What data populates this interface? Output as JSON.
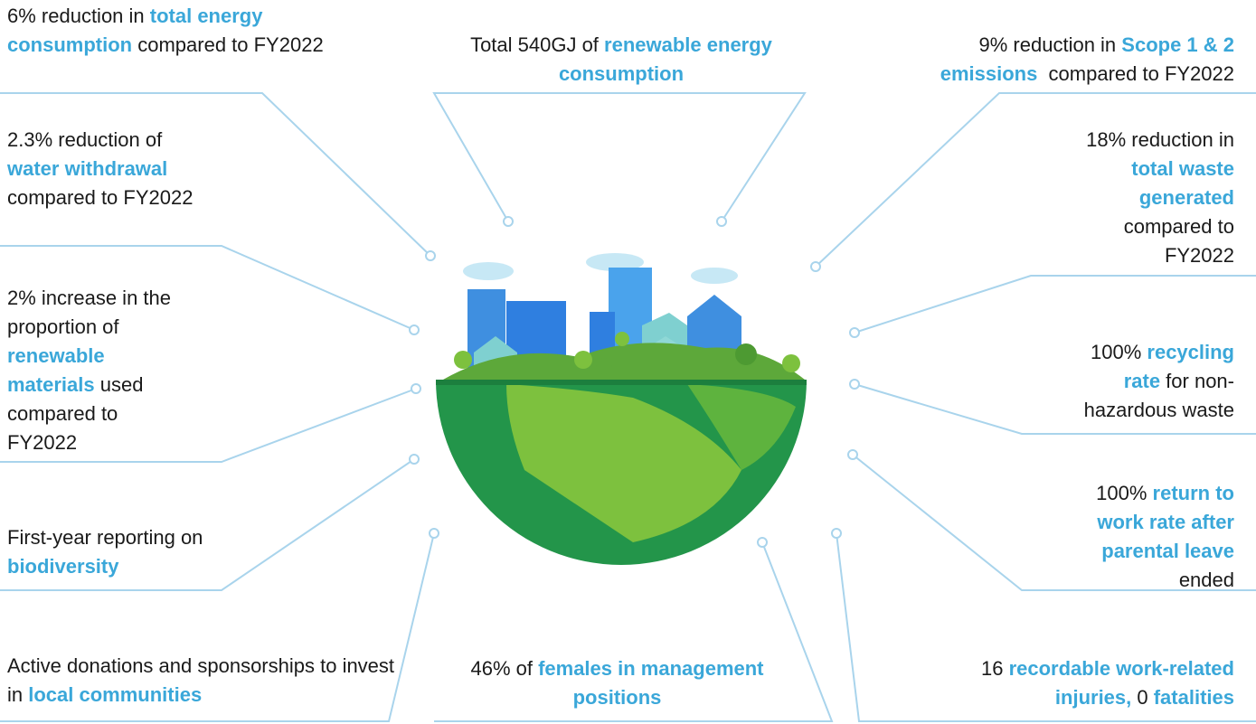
{
  "callouts": [
    {
      "segments": [
        {
          "text": "6% reduction in ",
          "emphasis": false
        },
        {
          "text": "total energy consumption",
          "emphasis": true
        },
        {
          "text": " compared to FY2022",
          "emphasis": false
        }
      ]
    },
    {
      "segments": [
        {
          "text": "2.3% reduction of ",
          "emphasis": false
        },
        {
          "text": "water withdrawal",
          "emphasis": true
        },
        {
          "text": " compared to FY2022",
          "emphasis": false
        }
      ]
    },
    {
      "segments": [
        {
          "text": "2% increase in the proportion of ",
          "emphasis": false
        },
        {
          "text": "renewable materials",
          "emphasis": true
        },
        {
          "text": " used compared to FY2022",
          "emphasis": false
        }
      ]
    },
    {
      "segments": [
        {
          "text": "First-year reporting on ",
          "emphasis": false
        },
        {
          "text": "biodiversity",
          "emphasis": true
        }
      ]
    },
    {
      "segments": [
        {
          "text": "Active donations and sponsorships to invest in ",
          "emphasis": false
        },
        {
          "text": "local communities",
          "emphasis": true
        }
      ]
    },
    {
      "segments": [
        {
          "text": "Total 540GJ of ",
          "emphasis": false
        },
        {
          "text": "renewable energy consumption",
          "emphasis": true
        }
      ]
    },
    {
      "segments": [
        {
          "text": "46% of ",
          "emphasis": false
        },
        {
          "text": "females in management positions",
          "emphasis": true
        }
      ]
    },
    {
      "segments": [
        {
          "text": "9% reduction in ",
          "emphasis": false
        },
        {
          "text": "Scope 1 & 2 emissions",
          "emphasis": true
        },
        {
          "text": "  compared to FY2022",
          "emphasis": false
        }
      ]
    },
    {
      "segments": [
        {
          "text": "18% reduction in ",
          "emphasis": false
        },
        {
          "text": "total waste generated",
          "emphasis": true
        },
        {
          "text": " compared to FY2022",
          "emphasis": false
        }
      ]
    },
    {
      "segments": [
        {
          "text": "100% ",
          "emphasis": false
        },
        {
          "text": "recycling rate",
          "emphasis": true
        },
        {
          "text": " for non-hazardous waste",
          "emphasis": false
        }
      ]
    },
    {
      "segments": [
        {
          "text": "100% ",
          "emphasis": false
        },
        {
          "text": "return to work rate after parental leave",
          "emphasis": true
        },
        {
          "text": " ended",
          "emphasis": false
        }
      ]
    },
    {
      "segments": [
        {
          "text": "16 ",
          "emphasis": false
        },
        {
          "text": "recordable work-related injuries,",
          "emphasis": true
        },
        {
          "text": " 0 ",
          "emphasis": false
        },
        {
          "text": "fatalities",
          "emphasis": true
        }
      ]
    }
  ]
}
